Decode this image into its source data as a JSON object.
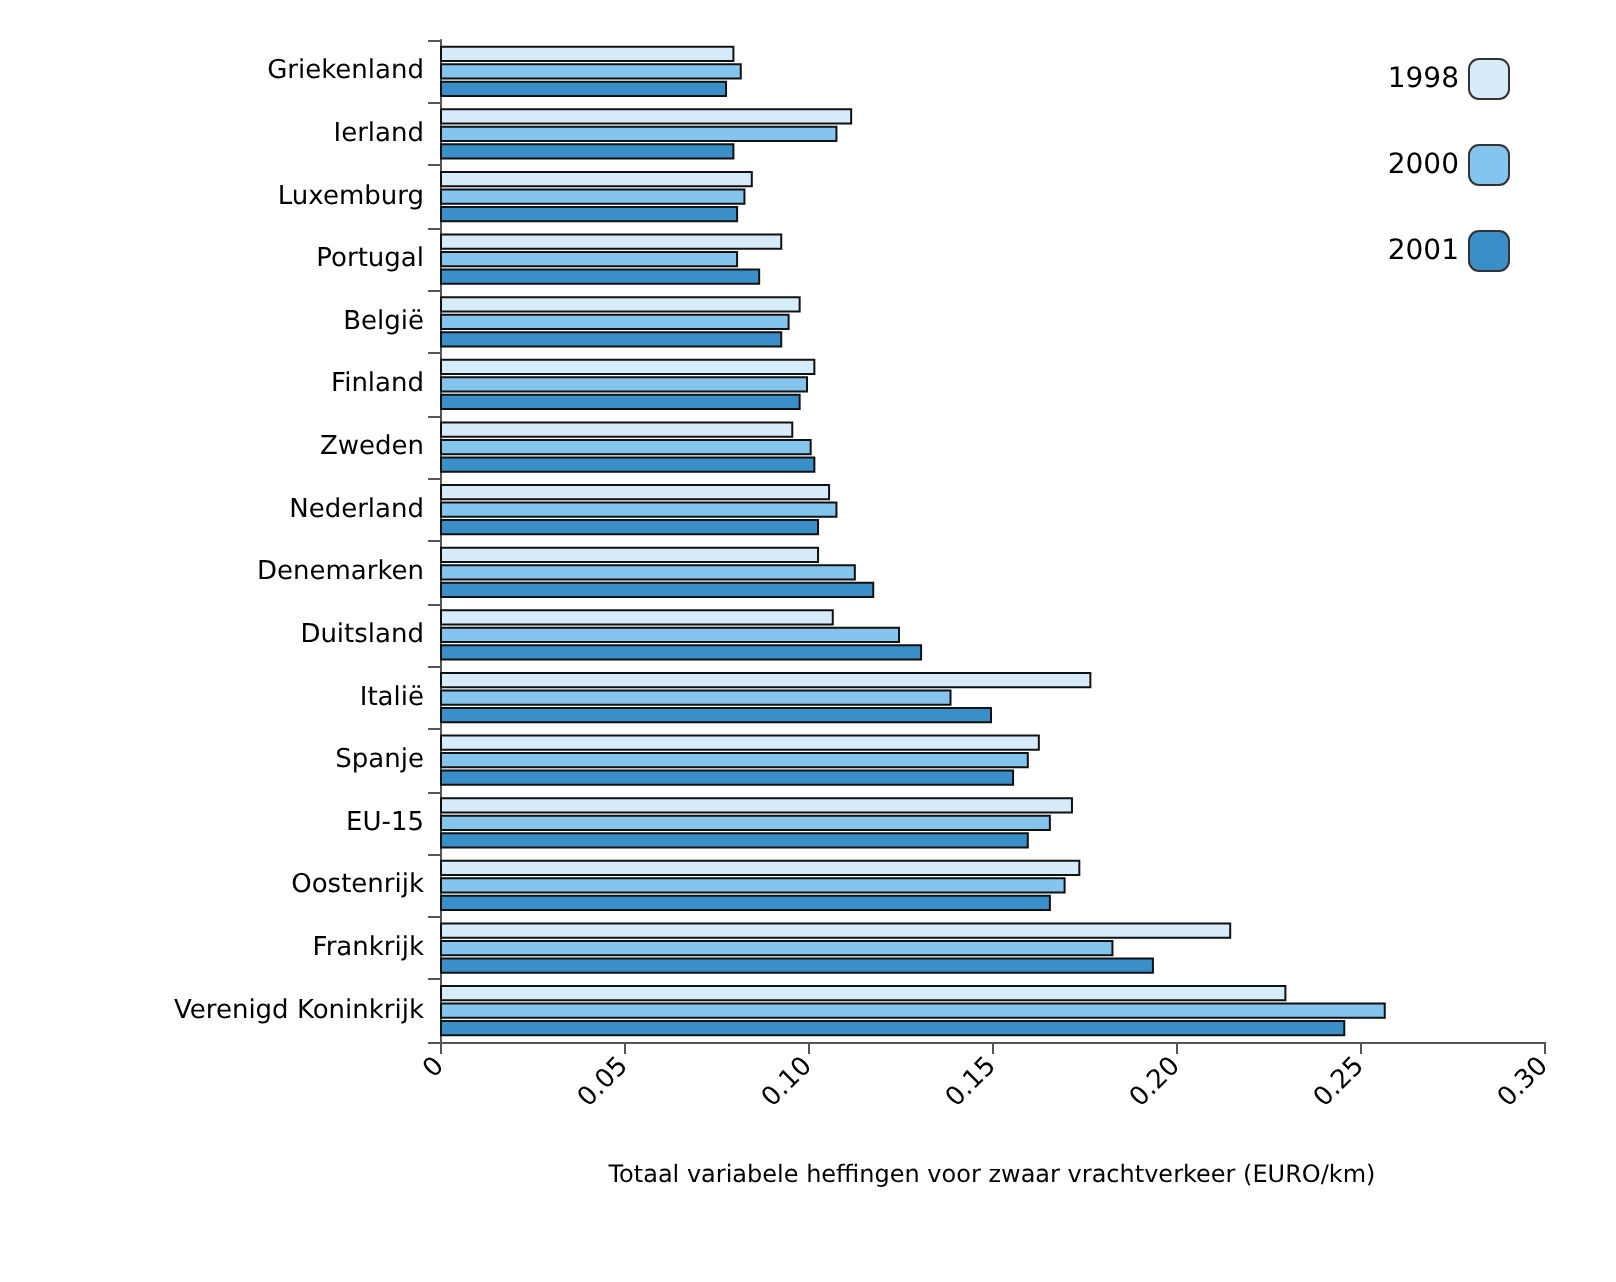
{
  "chart_data": {
    "type": "bar",
    "orientation": "horizontal",
    "xlabel": "Totaal variabele heffingen voor zwaar vrachtverkeer (EURO/km)",
    "categories": [
      "Griekenland",
      "Ierland",
      "Luxemburg",
      "Portugal",
      "België",
      "Finland",
      "Zweden",
      "Nederland",
      "Denemarken",
      "Duitsland",
      "Italië",
      "Spanje",
      "EU-15",
      "Oostenrijk",
      "Frankrijk",
      "Verenigd Koninkrijk"
    ],
    "series": [
      {
        "name": "1998",
        "color": "#d6ecfa",
        "values": [
          0.08,
          0.112,
          0.085,
          0.093,
          0.098,
          0.102,
          0.096,
          0.106,
          0.103,
          0.107,
          0.177,
          0.163,
          0.172,
          0.174,
          0.215,
          0.23
        ]
      },
      {
        "name": "2000",
        "color": "#85c4ec",
        "values": [
          0.082,
          0.108,
          0.083,
          0.081,
          0.095,
          0.1,
          0.101,
          0.108,
          0.113,
          0.125,
          0.139,
          0.16,
          0.166,
          0.17,
          0.183,
          0.257
        ]
      },
      {
        "name": "2001",
        "color": "#3a8fc8",
        "values": [
          0.078,
          0.08,
          0.081,
          0.087,
          0.093,
          0.098,
          0.102,
          0.103,
          0.118,
          0.131,
          0.15,
          0.156,
          0.16,
          0.166,
          0.194,
          0.246
        ]
      }
    ],
    "xlim": [
      0,
      0.3
    ],
    "xticks": [
      0,
      0.05,
      {
        "value": 0.1,
        "label": "0.10"
      },
      0.15,
      {
        "value": 0.2,
        "label": "0.20"
      },
      0.25,
      {
        "value": 0.3,
        "label": "0.30"
      }
    ],
    "grid": false,
    "legend": "top right"
  }
}
